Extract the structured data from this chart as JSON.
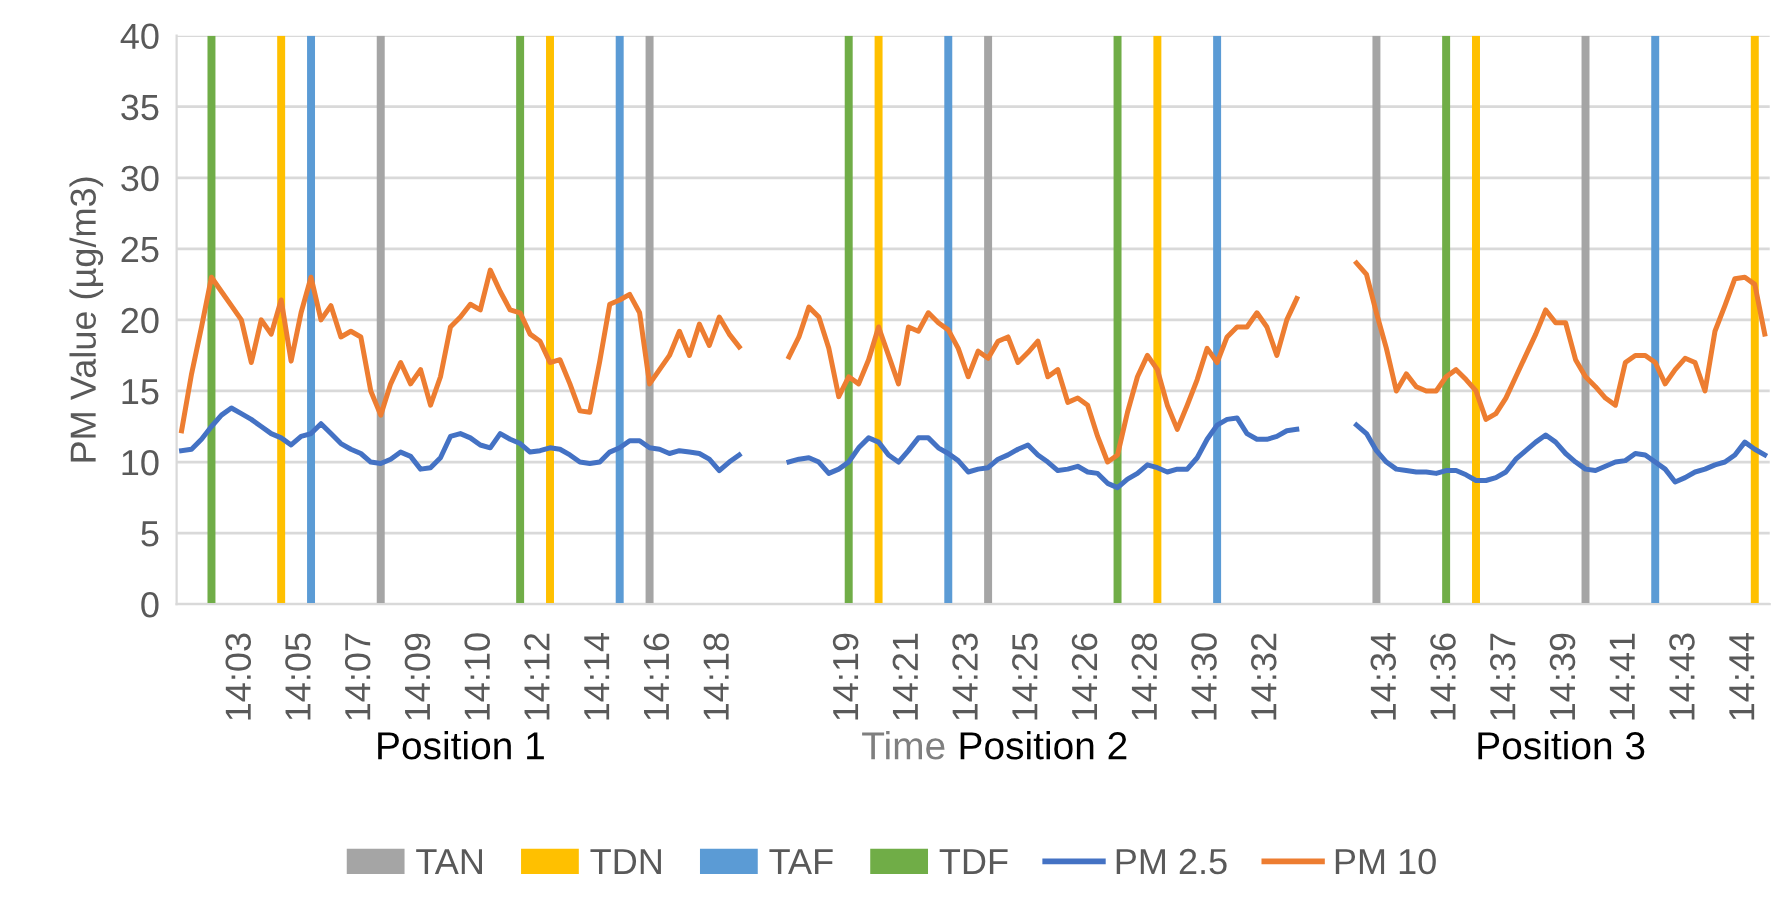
{
  "chart_data": {
    "type": "line",
    "ylabel": "PM Value (µg/m3)",
    "xlabel": "Time",
    "annotations": [
      "Position 1",
      "Position 2",
      "Position 3"
    ],
    "categories": [
      null,
      null,
      null,
      null,
      null,
      null,
      "14:03",
      null,
      null,
      null,
      null,
      null,
      "14:05",
      null,
      null,
      null,
      null,
      null,
      "14:07",
      null,
      null,
      null,
      null,
      null,
      "14:09",
      null,
      null,
      null,
      null,
      null,
      "14:10",
      null,
      null,
      null,
      null,
      null,
      "14:12",
      null,
      null,
      null,
      null,
      null,
      "14:14",
      null,
      null,
      null,
      null,
      null,
      "14:16",
      null,
      null,
      null,
      null,
      null,
      "14:18",
      null,
      null,
      null,
      null,
      null,
      null,
      null,
      null,
      null,
      null,
      null,
      null,
      "14:19",
      null,
      null,
      null,
      null,
      null,
      "14:21",
      null,
      null,
      null,
      null,
      null,
      "14:23",
      null,
      null,
      null,
      null,
      null,
      "14:25",
      null,
      null,
      null,
      null,
      null,
      "14:26",
      null,
      null,
      null,
      null,
      null,
      "14:28",
      null,
      null,
      null,
      null,
      null,
      "14:30",
      null,
      null,
      null,
      null,
      null,
      "14:32",
      null,
      null,
      null,
      null,
      null,
      null,
      null,
      null,
      null,
      null,
      null,
      "14:34",
      null,
      null,
      null,
      null,
      null,
      "14:36",
      null,
      null,
      null,
      null,
      null,
      "14:37",
      null,
      null,
      null,
      null,
      null,
      "14:39",
      null,
      null,
      null,
      null,
      null,
      "14:41",
      null,
      null,
      null,
      null,
      null,
      "14:43",
      null,
      null,
      null,
      null,
      null,
      "14:44",
      null,
      null
    ],
    "series": [
      {
        "name": "TAN",
        "type": "bar",
        "color": "#a5a5a5",
        "values": [
          null,
          null,
          null,
          null,
          null,
          null,
          null,
          null,
          null,
          null,
          null,
          null,
          null,
          null,
          null,
          null,
          null,
          null,
          null,
          null,
          40,
          null,
          null,
          null,
          null,
          null,
          null,
          null,
          null,
          null,
          null,
          null,
          null,
          null,
          null,
          null,
          null,
          null,
          null,
          null,
          null,
          null,
          null,
          null,
          null,
          null,
          null,
          40,
          null,
          null,
          null,
          null,
          null,
          null,
          null,
          null,
          null,
          null,
          null,
          null,
          null,
          null,
          null,
          null,
          null,
          null,
          null,
          null,
          null,
          null,
          null,
          null,
          null,
          null,
          null,
          null,
          null,
          null,
          null,
          null,
          null,
          40,
          null,
          null,
          null,
          null,
          null,
          null,
          null,
          null,
          null,
          null,
          null,
          null,
          null,
          null,
          null,
          null,
          null,
          null,
          null,
          null,
          null,
          null,
          null,
          null,
          null,
          null,
          null,
          null,
          null,
          null,
          null,
          null,
          null,
          null,
          null,
          null,
          null,
          null,
          40,
          null,
          null,
          null,
          null,
          null,
          null,
          null,
          null,
          null,
          null,
          null,
          null,
          null,
          null,
          null,
          null,
          null,
          null,
          null,
          null,
          40,
          null,
          null,
          null,
          null,
          null,
          null,
          null,
          null,
          null,
          null,
          null,
          null,
          null,
          null,
          null,
          null,
          null,
          null
        ]
      },
      {
        "name": "TDN",
        "type": "bar",
        "color": "#ffc000",
        "values": [
          null,
          null,
          null,
          null,
          null,
          null,
          null,
          null,
          null,
          null,
          40,
          null,
          null,
          null,
          null,
          null,
          null,
          null,
          null,
          null,
          null,
          null,
          null,
          null,
          null,
          null,
          null,
          null,
          null,
          null,
          null,
          null,
          null,
          null,
          null,
          null,
          null,
          40,
          null,
          null,
          null,
          null,
          null,
          null,
          null,
          null,
          null,
          null,
          null,
          null,
          null,
          null,
          null,
          null,
          null,
          null,
          null,
          null,
          null,
          null,
          null,
          null,
          null,
          null,
          null,
          null,
          null,
          null,
          null,
          null,
          40,
          null,
          null,
          null,
          null,
          null,
          null,
          null,
          null,
          null,
          null,
          null,
          null,
          null,
          null,
          null,
          null,
          null,
          null,
          null,
          null,
          null,
          null,
          null,
          null,
          null,
          null,
          null,
          40,
          null,
          null,
          null,
          null,
          null,
          null,
          null,
          null,
          null,
          null,
          null,
          null,
          null,
          null,
          null,
          null,
          null,
          null,
          null,
          null,
          null,
          null,
          null,
          null,
          null,
          null,
          null,
          null,
          null,
          null,
          null,
          40,
          null,
          null,
          null,
          null,
          null,
          null,
          null,
          null,
          null,
          null,
          null,
          null,
          null,
          null,
          null,
          null,
          null,
          null,
          null,
          null,
          null,
          null,
          null,
          null,
          null,
          null,
          null,
          40,
          null
        ]
      },
      {
        "name": "TAF",
        "type": "bar",
        "color": "#5b9bd5",
        "values": [
          null,
          null,
          null,
          null,
          null,
          null,
          null,
          null,
          null,
          null,
          null,
          null,
          null,
          40,
          null,
          null,
          null,
          null,
          null,
          null,
          null,
          null,
          null,
          null,
          null,
          null,
          null,
          null,
          null,
          null,
          null,
          null,
          null,
          null,
          null,
          null,
          null,
          null,
          null,
          null,
          null,
          null,
          null,
          null,
          40,
          null,
          null,
          null,
          null,
          null,
          null,
          null,
          null,
          null,
          null,
          null,
          null,
          null,
          null,
          null,
          null,
          null,
          null,
          null,
          null,
          null,
          null,
          null,
          null,
          null,
          null,
          null,
          null,
          null,
          null,
          null,
          null,
          40,
          null,
          null,
          null,
          null,
          null,
          null,
          null,
          null,
          null,
          null,
          null,
          null,
          null,
          null,
          null,
          null,
          null,
          null,
          null,
          null,
          null,
          null,
          null,
          null,
          null,
          null,
          40,
          null,
          null,
          null,
          null,
          null,
          null,
          null,
          null,
          null,
          null,
          null,
          null,
          null,
          null,
          null,
          null,
          null,
          null,
          null,
          null,
          null,
          null,
          null,
          null,
          null,
          null,
          null,
          null,
          null,
          null,
          null,
          null,
          null,
          null,
          null,
          null,
          null,
          null,
          null,
          null,
          null,
          null,
          null,
          40,
          null,
          null,
          null,
          null,
          null,
          null,
          null,
          null,
          null,
          null,
          null
        ]
      },
      {
        "name": "TDF",
        "type": "bar",
        "color": "#70ad47",
        "values": [
          null,
          null,
          null,
          40,
          null,
          null,
          null,
          null,
          null,
          null,
          null,
          null,
          null,
          null,
          null,
          null,
          null,
          null,
          null,
          null,
          null,
          null,
          null,
          null,
          null,
          null,
          null,
          null,
          null,
          null,
          null,
          null,
          null,
          null,
          40,
          null,
          null,
          null,
          null,
          null,
          null,
          null,
          null,
          null,
          null,
          null,
          null,
          null,
          null,
          null,
          null,
          null,
          null,
          null,
          null,
          null,
          null,
          null,
          null,
          null,
          null,
          null,
          null,
          null,
          null,
          null,
          null,
          40,
          null,
          null,
          null,
          null,
          null,
          null,
          null,
          null,
          null,
          null,
          null,
          null,
          null,
          null,
          null,
          null,
          null,
          null,
          null,
          null,
          null,
          null,
          null,
          null,
          null,
          null,
          40,
          null,
          null,
          null,
          null,
          null,
          null,
          null,
          null,
          null,
          null,
          null,
          null,
          null,
          null,
          null,
          null,
          null,
          null,
          null,
          null,
          null,
          null,
          null,
          null,
          null,
          null,
          null,
          null,
          null,
          null,
          null,
          null,
          40,
          null,
          null,
          null,
          null,
          null,
          null,
          null,
          null,
          null,
          null,
          null,
          null,
          null,
          null,
          null,
          null,
          null,
          null,
          null,
          null,
          null,
          null,
          null,
          null,
          null,
          null,
          null,
          null,
          null,
          null,
          null,
          null
        ]
      },
      {
        "name": "PM 2.5",
        "color": "#4472c4",
        "values": [
          10.8,
          10.9,
          11.6,
          12.5,
          13.3,
          13.8,
          13.4,
          13.0,
          12.5,
          12.0,
          11.7,
          11.2,
          11.8,
          12.0,
          12.7,
          12.0,
          11.3,
          10.9,
          10.6,
          10.0,
          9.9,
          10.2,
          10.7,
          10.4,
          9.5,
          9.6,
          10.3,
          11.8,
          12.0,
          11.7,
          11.2,
          11.0,
          12.0,
          11.6,
          11.3,
          10.7,
          10.8,
          11.0,
          10.9,
          10.5,
          10.0,
          9.9,
          10.0,
          10.7,
          11.0,
          11.5,
          11.5,
          11.0,
          10.9,
          10.6,
          10.8,
          10.7,
          10.6,
          10.2,
          9.4,
          10.0,
          10.5,
          null,
          null,
          null,
          null,
          10.0,
          10.2,
          10.3,
          10.0,
          9.2,
          9.5,
          10.0,
          11.0,
          11.7,
          11.4,
          10.5,
          10.0,
          10.8,
          11.7,
          11.7,
          11.0,
          10.6,
          10.1,
          9.3,
          9.5,
          9.6,
          10.2,
          10.5,
          10.9,
          11.2,
          10.5,
          10.0,
          9.4,
          9.5,
          9.7,
          9.3,
          9.2,
          8.5,
          8.2,
          8.8,
          9.2,
          9.8,
          9.6,
          9.3,
          9.5,
          9.5,
          10.3,
          11.6,
          12.6,
          13.0,
          13.1,
          12.0,
          11.6,
          11.6,
          11.8,
          12.2,
          12.3,
          null,
          null,
          null,
          null,
          null,
          12.6,
          12.0,
          10.8,
          10.0,
          9.5,
          9.4,
          9.3,
          9.3,
          9.2,
          9.4,
          9.4,
          9.1,
          8.7,
          8.7,
          8.9,
          9.3,
          10.2,
          10.8,
          11.4,
          11.9,
          11.4,
          10.6,
          10.0,
          9.5,
          9.4,
          9.7,
          10.0,
          10.1,
          10.6,
          10.5,
          10.0,
          9.5,
          8.6,
          8.9,
          9.3,
          9.5,
          9.8,
          10.0,
          10.5,
          11.4,
          10.9,
          10.5
        ]
      },
      {
        "name": "PM 10",
        "color": "#ed7d31",
        "values": [
          12.2,
          16.2,
          19.5,
          23.0,
          22.0,
          21.0,
          20.0,
          17.0,
          20.0,
          19.0,
          21.4,
          17.1,
          20.5,
          23.0,
          20.0,
          21.0,
          18.8,
          19.2,
          18.8,
          15.0,
          13.3,
          15.5,
          17.0,
          15.5,
          16.5,
          14.0,
          16.0,
          19.5,
          20.2,
          21.1,
          20.7,
          23.5,
          22.0,
          20.7,
          20.5,
          19.0,
          18.5,
          17.0,
          17.2,
          15.5,
          13.6,
          13.5,
          17.1,
          21.1,
          21.4,
          21.8,
          20.5,
          15.5,
          16.5,
          17.5,
          19.2,
          17.5,
          19.7,
          18.2,
          20.2,
          19.0,
          18.1,
          null,
          null,
          null,
          null,
          17.4,
          18.8,
          20.9,
          20.2,
          18.0,
          14.6,
          16.0,
          15.5,
          17.2,
          19.5,
          17.5,
          15.5,
          19.5,
          19.2,
          20.5,
          19.8,
          19.3,
          18.0,
          16.0,
          17.8,
          17.3,
          18.5,
          18.8,
          17.0,
          17.7,
          18.5,
          16.0,
          16.5,
          14.2,
          14.5,
          14.0,
          11.8,
          10.0,
          10.5,
          13.5,
          16.0,
          17.5,
          16.5,
          14.0,
          12.3,
          14.0,
          15.8,
          18.0,
          17.0,
          18.8,
          19.5,
          19.5,
          20.5,
          19.5,
          17.5,
          20.0,
          21.5,
          null,
          null,
          null,
          null,
          null,
          24.0,
          23.2,
          20.5,
          18.0,
          15.0,
          16.2,
          15.3,
          15.0,
          15.0,
          16.0,
          16.5,
          15.8,
          15.0,
          13.0,
          13.4,
          14.5,
          16.0,
          17.5,
          19.0,
          20.7,
          19.8,
          19.8,
          17.2,
          16.0,
          15.3,
          14.5,
          14.0,
          17.0,
          17.5,
          17.5,
          17.0,
          15.5,
          16.5,
          17.3,
          17.0,
          15.0,
          19.2,
          21.0,
          22.9,
          23.0,
          22.5,
          19.0
        ]
      }
    ],
    "ylim": [
      0,
      40
    ],
    "yticks": [
      0,
      5,
      10,
      15,
      20,
      25,
      30,
      35,
      40
    ],
    "grid": "y",
    "legend": "bottom"
  }
}
